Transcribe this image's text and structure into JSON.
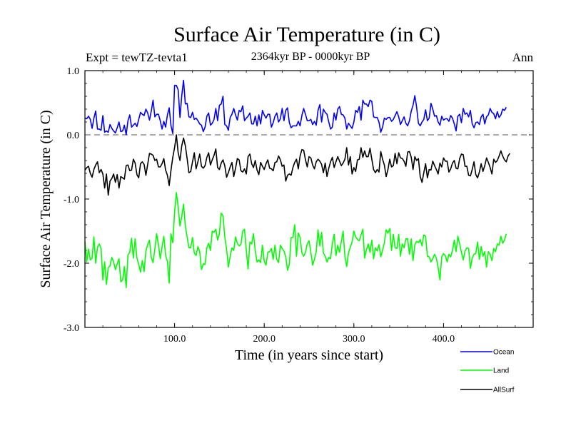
{
  "chart_data": {
    "type": "line",
    "title": "Surface Air Temperature (in C)",
    "subtitle": "2364kyr BP - 0000kyr BP",
    "left_label": "Expt = tewTZ-tevta1",
    "right_label": "Ann",
    "xlabel": "Time (in years since start)",
    "ylabel": "Surface Air Temperature (in C)",
    "xlim": [
      0,
      500
    ],
    "ylim": [
      -3.0,
      1.0
    ],
    "xticks": [
      100,
      200,
      300,
      400
    ],
    "xtick_labels": [
      "100.0",
      "200.0",
      "300.0",
      "400.0"
    ],
    "yticks": [
      1.0,
      0.0,
      -1.0,
      -2.0,
      -3.0
    ],
    "ytick_labels": [
      "1.0",
      "0.0",
      "-1.0",
      "-2.0",
      "-3.0"
    ],
    "reference_line": 0.0,
    "x_step": 2,
    "series": [
      {
        "name": "Ocean",
        "color": "#0000ff",
        "values": [
          0.26,
          0.25,
          0.29,
          0.24,
          0.1,
          0.26,
          0.37,
          0.09,
          0.09,
          0.07,
          0.3,
          0.04,
          0.06,
          0.04,
          0.16,
          0.1,
          0.06,
          0.03,
          0.11,
          0.2,
          0.05,
          0.06,
          0.15,
          0.0,
          0.22,
          0.31,
          0.12,
          0.15,
          0.18,
          0.13,
          0.24,
          0.35,
          0.32,
          0.3,
          0.4,
          0.34,
          0.23,
          0.37,
          0.54,
          0.28,
          0.32,
          0.32,
          0.22,
          0.09,
          0.21,
          0.12,
          0.31,
          0.42,
          0.14,
          0.02,
          0.77,
          0.77,
          0.7,
          0.27,
          0.61,
          0.85,
          0.48,
          0.49,
          0.28,
          0.27,
          0.35,
          0.24,
          0.26,
          0.22,
          0.17,
          0.15,
          0.05,
          0.12,
          0.29,
          0.34,
          0.15,
          0.18,
          0.24,
          0.41,
          0.22,
          0.46,
          0.48,
          0.6,
          0.16,
          0.14,
          0.07,
          0.27,
          0.32,
          0.41,
          0.31,
          0.23,
          0.38,
          0.36,
          0.45,
          0.22,
          0.26,
          0.29,
          0.34,
          0.17,
          0.17,
          0.29,
          0.14,
          0.31,
          0.17,
          0.38,
          0.31,
          0.26,
          0.32,
          0.32,
          0.12,
          0.19,
          0.29,
          0.34,
          0.2,
          0.25,
          0.41,
          0.22,
          0.38,
          0.42,
          0.19,
          0.11,
          0.14,
          0.14,
          0.14,
          0.21,
          0.14,
          0.3,
          0.41,
          0.32,
          0.22,
          0.22,
          0.24,
          0.16,
          0.21,
          0.15,
          0.38,
          0.47,
          0.2,
          0.4,
          0.35,
          0.32,
          0.2,
          0.09,
          0.12,
          0.34,
          0.23,
          0.4,
          0.44,
          0.32,
          0.31,
          0.26,
          0.09,
          0.18,
          0.14,
          0.1,
          0.2,
          0.38,
          0.35,
          0.44,
          0.23,
          0.54,
          0.48,
          0.48,
          0.44,
          0.54,
          0.52,
          0.28,
          0.27,
          0.27,
          0.2,
          0.04,
          0.12,
          0.26,
          0.24,
          0.27,
          0.27,
          0.21,
          0.24,
          0.3,
          0.36,
          0.28,
          0.16,
          0.22,
          0.28,
          0.18,
          0.14,
          0.22,
          0.37,
          0.46,
          0.61,
          0.43,
          0.18,
          0.14,
          0.2,
          0.24,
          0.39,
          0.22,
          0.26,
          0.49,
          0.4,
          0.29,
          0.3,
          0.2,
          0.15,
          0.29,
          0.23,
          0.25,
          0.25,
          0.21,
          0.3,
          0.26,
          0.17,
          0.06,
          0.29,
          0.32,
          0.19,
          0.41,
          0.32,
          0.34,
          0.28,
          0.38,
          0.17,
          0.11,
          0.19,
          0.2,
          0.16,
          0.28,
          0.32,
          0.17,
          0.28,
          0.31,
          0.41,
          0.35,
          0.33,
          0.25,
          0.36,
          0.27,
          0.31,
          0.4,
          0.38,
          0.43
        ]
      },
      {
        "name": "Land",
        "color": "#00ff00",
        "values": [
          -1.66,
          -1.98,
          -1.78,
          -1.95,
          -1.92,
          -1.59,
          -2.0,
          -1.75,
          -1.7,
          -1.77,
          -2.26,
          -1.98,
          -2.33,
          -2.07,
          -2.04,
          -1.91,
          -1.98,
          -2.1,
          -2.01,
          -1.93,
          -2.29,
          -2.26,
          -2.05,
          -2.38,
          -1.87,
          -1.83,
          -1.61,
          -1.92,
          -1.62,
          -1.92,
          -2.02,
          -2.14,
          -1.96,
          -2.13,
          -1.81,
          -1.71,
          -1.64,
          -1.91,
          -1.99,
          -1.78,
          -1.54,
          -1.71,
          -1.93,
          -1.75,
          -1.58,
          -1.88,
          -1.97,
          -2.31,
          -1.54,
          -1.68,
          -1.21,
          -0.9,
          -1.12,
          -1.42,
          -1.27,
          -1.08,
          -1.42,
          -1.59,
          -1.76,
          -1.76,
          -1.6,
          -1.84,
          -1.88,
          -1.74,
          -1.82,
          -2.1,
          -2.01,
          -2.02,
          -1.76,
          -1.69,
          -1.8,
          -1.5,
          -1.52,
          -1.47,
          -1.64,
          -1.54,
          -1.22,
          -1.26,
          -1.59,
          -1.78,
          -2.06,
          -1.89,
          -1.76,
          -1.8,
          -1.59,
          -1.69,
          -1.73,
          -1.71,
          -1.5,
          -1.47,
          -1.8,
          -2.09,
          -1.67,
          -1.7,
          -1.54,
          -1.81,
          -1.98,
          -1.95,
          -1.99,
          -1.72,
          -1.97,
          -2.03,
          -1.83,
          -1.82,
          -1.77,
          -1.94,
          -1.72,
          -1.94,
          -1.99,
          -1.72,
          -1.77,
          -1.81,
          -1.9,
          -2.11,
          -2.02,
          -1.6,
          -1.6,
          -1.4,
          -1.89,
          -1.53,
          -1.6,
          -1.84,
          -1.89,
          -1.83,
          -1.7,
          -1.65,
          -1.83,
          -2.03,
          -1.94,
          -1.82,
          -1.48,
          -1.73,
          -1.52,
          -1.84,
          -1.89,
          -1.98,
          -1.91,
          -1.93,
          -1.69,
          -1.55,
          -1.88,
          -1.72,
          -1.83,
          -1.66,
          -1.5,
          -1.89,
          -2.05,
          -1.84,
          -1.75,
          -1.67,
          -1.5,
          -1.59,
          -1.63,
          -1.65,
          -1.56,
          -1.47,
          -1.92,
          -1.79,
          -1.7,
          -1.83,
          -1.64,
          -1.93,
          -1.76,
          -1.81,
          -1.71,
          -1.9,
          -1.8,
          -1.68,
          -1.48,
          -1.53,
          -1.46,
          -1.8,
          -1.55,
          -1.76,
          -1.77,
          -1.55,
          -1.89,
          -1.7,
          -1.76,
          -1.62,
          -1.62,
          -1.86,
          -1.62,
          -1.96,
          -1.71,
          -1.66,
          -1.68,
          -1.63,
          -1.73,
          -1.56,
          -1.58,
          -1.89,
          -1.9,
          -1.98,
          -1.93,
          -1.86,
          -1.92,
          -2.07,
          -2.26,
          -1.9,
          -1.85,
          -1.88,
          -1.98,
          -1.86,
          -1.9,
          -1.8,
          -1.64,
          -1.82,
          -1.58,
          -1.7,
          -1.83,
          -1.95,
          -1.81,
          -1.76,
          -1.77,
          -2.08,
          -1.92,
          -1.86,
          -1.85,
          -1.67,
          -1.94,
          -1.74,
          -1.89,
          -1.82,
          -2.06,
          -1.82,
          -1.86,
          -1.96,
          -1.77,
          -1.82,
          -1.7,
          -1.72,
          -1.58,
          -1.69,
          -1.64,
          -1.54
        ]
      },
      {
        "name": "AllSurf",
        "color": "#000000",
        "values": [
          -0.55,
          -0.51,
          -0.49,
          -0.6,
          -0.66,
          -0.54,
          -0.47,
          -0.42,
          -0.59,
          -0.54,
          -0.61,
          -0.83,
          -0.61,
          -0.94,
          -0.72,
          -0.68,
          -0.61,
          -0.74,
          -0.62,
          -0.83,
          -0.65,
          -0.67,
          -0.69,
          -0.48,
          -0.47,
          -0.56,
          -0.55,
          -0.38,
          -0.44,
          -0.62,
          -0.67,
          -0.45,
          -0.42,
          -0.46,
          -0.63,
          -0.46,
          -0.29,
          -0.3,
          -0.32,
          -0.4,
          -0.38,
          -0.5,
          -0.5,
          -0.45,
          -0.37,
          -0.55,
          -0.63,
          -0.79,
          -0.55,
          -0.35,
          -0.2,
          0.0,
          -0.28,
          -0.4,
          -0.17,
          -0.05,
          -0.17,
          -0.37,
          -0.59,
          -0.57,
          -0.42,
          -0.28,
          -0.53,
          -0.42,
          -0.3,
          -0.49,
          -0.52,
          -0.48,
          -0.35,
          -0.28,
          -0.47,
          -0.39,
          -0.32,
          -0.22,
          -0.51,
          -0.54,
          -0.44,
          -0.39,
          -0.48,
          -0.66,
          -0.59,
          -0.5,
          -0.43,
          -0.65,
          -0.52,
          -0.37,
          -0.39,
          -0.56,
          -0.58,
          -0.53,
          -0.61,
          -0.34,
          -0.3,
          -0.45,
          -0.51,
          -0.4,
          -0.55,
          -0.62,
          -0.43,
          -0.49,
          -0.54,
          -0.45,
          -0.39,
          -0.52,
          -0.53,
          -0.56,
          -0.43,
          -0.42,
          -0.33,
          -0.39,
          -0.49,
          -0.47,
          -0.72,
          -0.63,
          -0.61,
          -0.63,
          -0.51,
          -0.43,
          -0.38,
          -0.53,
          -0.33,
          -0.23,
          -0.24,
          -0.39,
          -0.5,
          -0.34,
          -0.36,
          -0.47,
          -0.53,
          -0.42,
          -0.38,
          -0.41,
          -0.46,
          -0.59,
          -0.44,
          -0.65,
          -0.52,
          -0.42,
          -0.35,
          -0.51,
          -0.42,
          -0.34,
          -0.41,
          -0.48,
          -0.44,
          -0.38,
          -0.2,
          -0.47,
          -0.34,
          -0.61,
          -0.51,
          -0.57,
          -0.39,
          -0.38,
          -0.2,
          -0.35,
          -0.25,
          -0.34,
          -0.34,
          -0.21,
          -0.38,
          -0.54,
          -0.59,
          -0.54,
          -0.58,
          -0.26,
          -0.38,
          -0.47,
          -0.65,
          -0.54,
          -0.38,
          -0.5,
          -0.48,
          -0.29,
          -0.45,
          -0.28,
          -0.36,
          -0.37,
          -0.41,
          -0.49,
          -0.27,
          -0.26,
          -0.35,
          -0.54,
          -0.34,
          -0.4,
          -0.37,
          -0.65,
          -0.74,
          -0.59,
          -0.45,
          -0.67,
          -0.54,
          -0.55,
          -0.41,
          -0.48,
          -0.54,
          -0.61,
          -0.44,
          -0.5,
          -0.36,
          -0.41,
          -0.41,
          -0.58,
          -0.53,
          -0.44,
          -0.4,
          -0.52,
          -0.53,
          -0.37,
          -0.3,
          -0.31,
          -0.49,
          -0.49,
          -0.63,
          -0.64,
          -0.54,
          -0.42,
          -0.62,
          -0.67,
          -0.58,
          -0.45,
          -0.57,
          -0.48,
          -0.36,
          -0.43,
          -0.51,
          -0.61,
          -0.38,
          -0.43,
          -0.4,
          -0.33,
          -0.25,
          -0.33,
          -0.39,
          -0.42,
          -0.33,
          -0.29
        ]
      }
    ]
  }
}
